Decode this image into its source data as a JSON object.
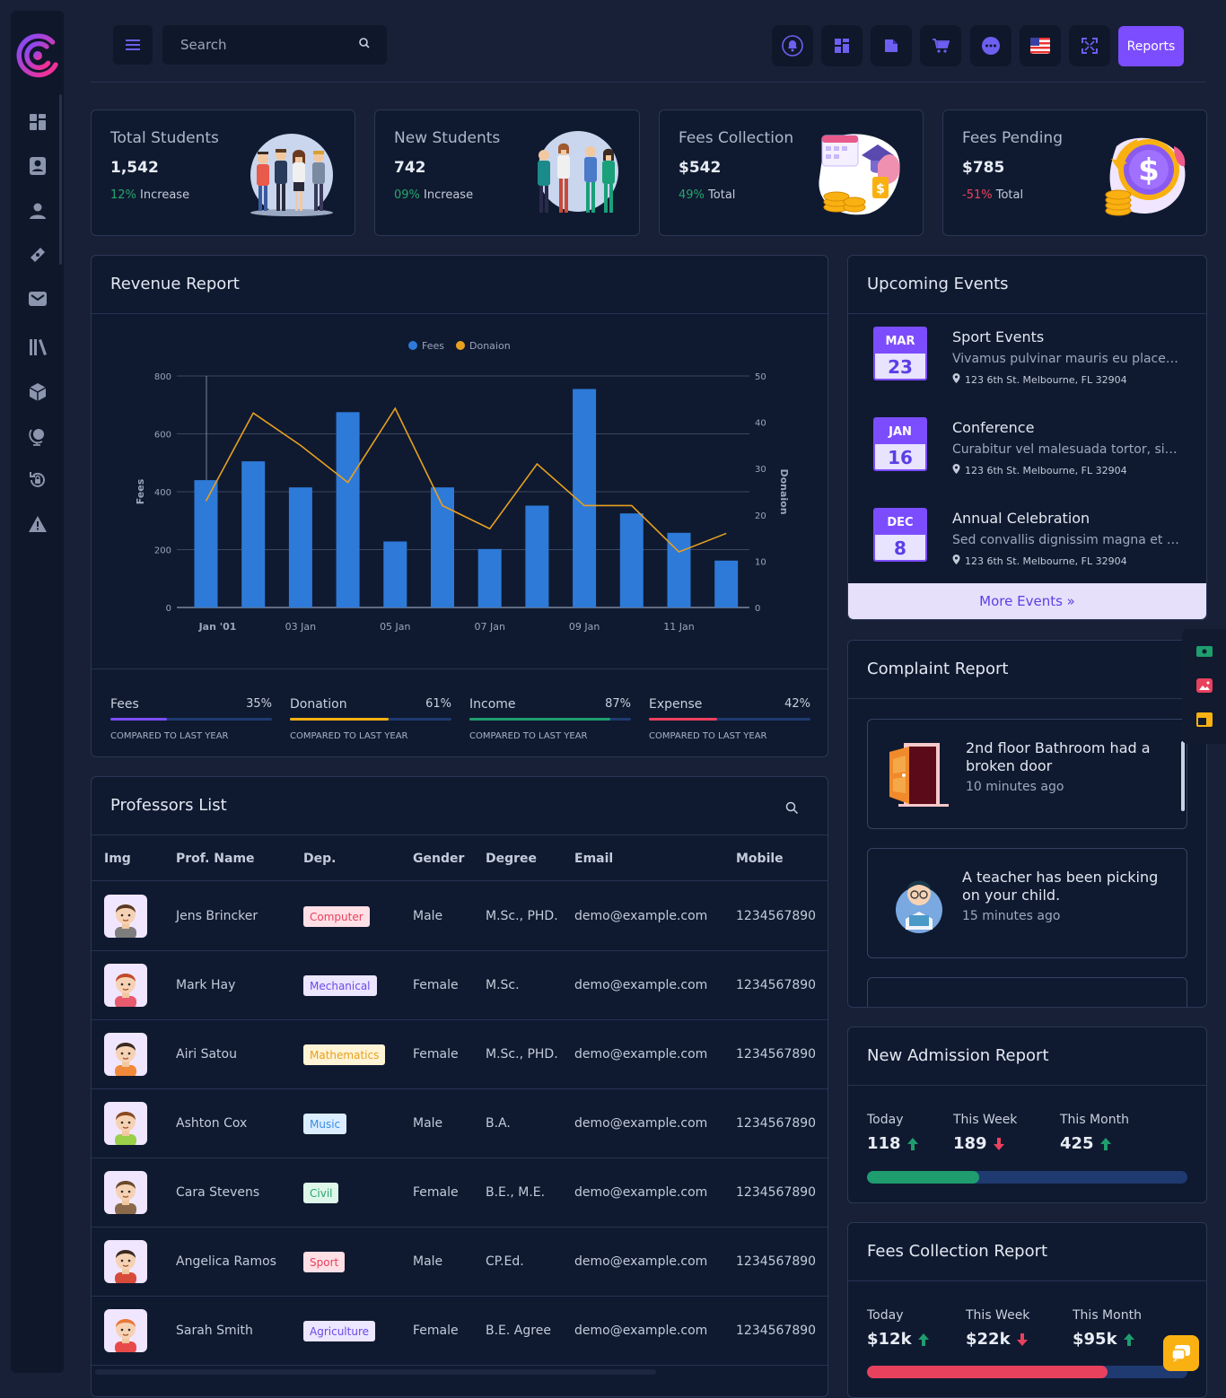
{
  "header": {
    "search_placeholder": "Search",
    "reports_label": "Reports"
  },
  "stats": [
    {
      "title": "Total Students",
      "value": "1,542",
      "change": "12%",
      "change_label": "Increase",
      "change_color": "#27a56f"
    },
    {
      "title": "New Students",
      "value": "742",
      "change": "09%",
      "change_label": "Increase",
      "change_color": "#27a56f"
    },
    {
      "title": "Fees Collection",
      "value": "$542",
      "change": "49%",
      "change_label": "Total",
      "change_color": "#27a56f"
    },
    {
      "title": "Fees Pending",
      "value": "$785",
      "change": "-51%",
      "change_label": "Total",
      "change_color": "#f0415e"
    }
  ],
  "revenue": {
    "title": "Revenue Report",
    "metrics": [
      {
        "label": "Fees",
        "percent": "35%",
        "compare": "COMPARED TO LAST YEAR",
        "color": "#7c4dff",
        "fill": 0.35
      },
      {
        "label": "Donation",
        "percent": "61%",
        "compare": "COMPARED TO LAST YEAR",
        "color": "#f9b112",
        "fill": 0.61
      },
      {
        "label": "Income",
        "percent": "87%",
        "compare": "COMPARED TO LAST YEAR",
        "color": "#1f9d6e",
        "fill": 0.87
      },
      {
        "label": "Expense",
        "percent": "42%",
        "compare": "COMPARED TO LAST YEAR",
        "color": "#f0415e",
        "fill": 0.42
      }
    ]
  },
  "chart_data": {
    "type": "bar",
    "legend": [
      "Fees",
      "Donaion"
    ],
    "legend_position": "top-center",
    "ylabel": "Fees",
    "y2label": "Donaion",
    "ylim": [
      0,
      800
    ],
    "y2lim": [
      0,
      50
    ],
    "yticks": [
      "0",
      "200",
      "400",
      "600",
      "800"
    ],
    "y2ticks": [
      "0",
      "10",
      "20",
      "30",
      "40",
      "50"
    ],
    "xtick_labels": [
      "Jan '01",
      "03 Jan",
      "05 Jan",
      "07 Jan",
      "09 Jan",
      "11 Jan"
    ],
    "series": [
      {
        "name": "Fees",
        "type": "bar",
        "color": "#2e7ad8",
        "values": [
          440,
          505,
          415,
          675,
          228,
          415,
          202,
          352,
          755,
          325,
          258,
          162
        ]
      },
      {
        "name": "Donaion",
        "type": "line",
        "color": "#e8a020",
        "values": [
          23,
          42,
          35,
          27,
          43,
          22,
          17,
          31,
          22,
          22,
          12,
          16
        ]
      }
    ]
  },
  "professors": {
    "title": "Professors List",
    "columns": [
      "Img",
      "Prof. Name",
      "Dep.",
      "Gender",
      "Degree",
      "Email",
      "Mobile"
    ],
    "rows": [
      {
        "name": "Jens Brincker",
        "dept": "Computer",
        "gender": "Male",
        "degree": "M.Sc., PHD.",
        "email": "demo@example.com",
        "mobile": "1234567890",
        "badge_bg": "#ffe0e6",
        "badge_fg": "#e8415e",
        "hair": "#5a3a22",
        "shirt": "#7d7d7d"
      },
      {
        "name": "Mark Hay",
        "dept": "Mechanical",
        "gender": "Female",
        "degree": "M.Sc.",
        "email": "demo@example.com",
        "mobile": "1234567890",
        "badge_bg": "#ece6ff",
        "badge_fg": "#6a4be6",
        "hair": "#c24a2a",
        "shirt": "#e85a6e"
      },
      {
        "name": "Airi Satou",
        "dept": "Mathematics",
        "gender": "Female",
        "degree": "M.Sc., PHD.",
        "email": "demo@example.com",
        "mobile": "1234567890",
        "badge_bg": "#fff4d6",
        "badge_fg": "#e8a020",
        "hair": "#3a2a20",
        "shirt": "#f08a3a"
      },
      {
        "name": "Ashton Cox",
        "dept": "Music",
        "gender": "Male",
        "degree": "B.A.",
        "email": "demo@example.com",
        "mobile": "1234567890",
        "badge_bg": "#dbeeff",
        "badge_fg": "#3a8ee6",
        "hair": "#8a4a22",
        "shirt": "#9ad04a"
      },
      {
        "name": "Cara Stevens",
        "dept": "Civil",
        "gender": "Female",
        "degree": "B.E., M.E.",
        "email": "demo@example.com",
        "mobile": "1234567890",
        "badge_bg": "#dff7ea",
        "badge_fg": "#27a56f",
        "hair": "#6a4a2a",
        "shirt": "#8a6a4a"
      },
      {
        "name": "Angelica Ramos",
        "dept": "Sport",
        "gender": "Male",
        "degree": "CP.Ed.",
        "email": "demo@example.com",
        "mobile": "1234567890",
        "badge_bg": "#ffe0e6",
        "badge_fg": "#e8415e",
        "hair": "#3a2a20",
        "shirt": "#d84a3a"
      },
      {
        "name": "Sarah Smith",
        "dept": "Agriculture",
        "gender": "Female",
        "degree": "B.E. Agree",
        "email": "demo@example.com",
        "mobile": "1234567890",
        "badge_bg": "#ece6ff",
        "badge_fg": "#6a4be6",
        "hair": "#e87a3a",
        "shirt": "#e84a4a"
      }
    ]
  },
  "events": {
    "title": "Upcoming Events",
    "items": [
      {
        "month": "MAR",
        "day": "23",
        "title": "Sport Events",
        "desc": "Vivamus pulvinar mauris eu placerat blandit.",
        "location": "123 6th St. Melbourne, FL 32904"
      },
      {
        "month": "JAN",
        "day": "16",
        "title": "Conference",
        "desc": "Curabitur vel malesuada tortor, sit amet.",
        "location": "123 6th St. Melbourne, FL 32904"
      },
      {
        "month": "DEC",
        "day": "8",
        "title": "Annual Celebration",
        "desc": "Sed convallis dignissim magna et dignissim.",
        "location": "123 6th St. Melbourne, FL 32904"
      }
    ],
    "more_label": "More Events »"
  },
  "complaints": {
    "title": "Complaint Report",
    "items": [
      {
        "text": "2nd floor Bathroom had a broken door",
        "time": "10 minutes ago"
      },
      {
        "text": "A teacher has been picking on your child.",
        "time": "15 minutes ago"
      }
    ]
  },
  "admission": {
    "title": "New Admission Report",
    "cols": [
      {
        "label": "Today",
        "value": "118",
        "trend": "up"
      },
      {
        "label": "This Week",
        "value": "189",
        "trend": "down"
      },
      {
        "label": "This Month",
        "value": "425",
        "trend": "up"
      }
    ],
    "progress": 0.35,
    "progress_color": "#1f9d6e"
  },
  "fees_report": {
    "title": "Fees Collection Report",
    "cols": [
      {
        "label": "Today",
        "value": "$12k",
        "trend": "up"
      },
      {
        "label": "This Week",
        "value": "$22k",
        "trend": "down"
      },
      {
        "label": "This Month",
        "value": "$95k",
        "trend": "up"
      }
    ],
    "progress": 0.75,
    "progress_color": "#e8415e"
  }
}
